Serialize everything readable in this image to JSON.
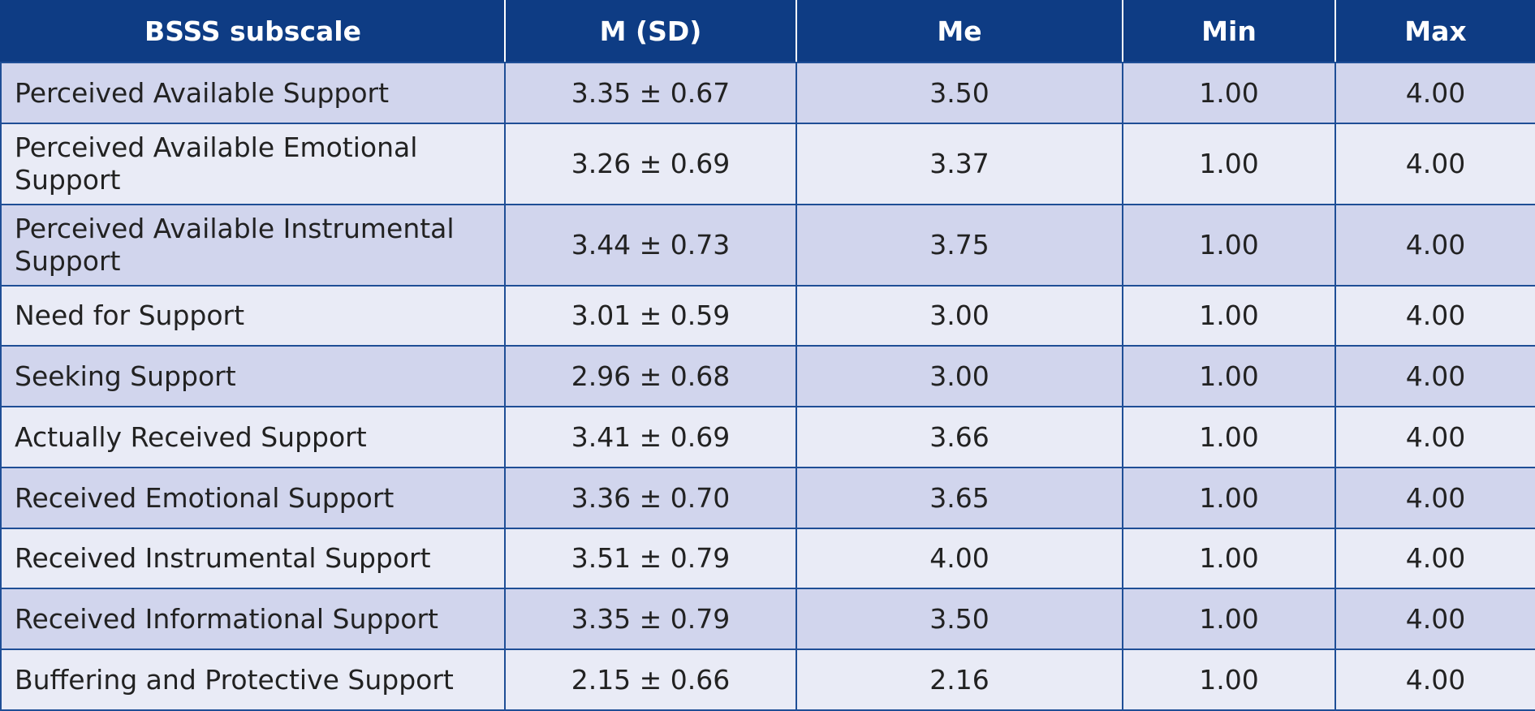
{
  "table": {
    "headers": [
      "BSSS subscale",
      "M (SD)",
      "Me",
      "Min",
      "Max"
    ],
    "rows": [
      {
        "subscale": "Perceived Available Support",
        "m_sd": "3.35 ± 0.67",
        "me": "3.50",
        "min": "1.00",
        "max": "4.00"
      },
      {
        "subscale": "Perceived Available Emotional Support",
        "m_sd": "3.26 ± 0.69",
        "me": "3.37",
        "min": "1.00",
        "max": "4.00"
      },
      {
        "subscale": "Perceived Available Instrumental Support",
        "m_sd": "3.44 ± 0.73",
        "me": "3.75",
        "min": "1.00",
        "max": "4.00"
      },
      {
        "subscale": "Need for Support",
        "m_sd": "3.01 ± 0.59",
        "me": "3.00",
        "min": "1.00",
        "max": "4.00"
      },
      {
        "subscale": "Seeking Support",
        "m_sd": "2.96 ± 0.68",
        "me": "3.00",
        "min": "1.00",
        "max": "4.00"
      },
      {
        "subscale": "Actually Received Support",
        "m_sd": "3.41 ± 0.69",
        "me": "3.66",
        "min": "1.00",
        "max": "4.00"
      },
      {
        "subscale": "Received Emotional Support",
        "m_sd": "3.36 ± 0.70",
        "me": "3.65",
        "min": "1.00",
        "max": "4.00"
      },
      {
        "subscale": "Received Instrumental Support",
        "m_sd": "3.51 ± 0.79",
        "me": "4.00",
        "min": "1.00",
        "max": "4.00"
      },
      {
        "subscale": "Received Informational Support",
        "m_sd": "3.35 ± 0.79",
        "me": "3.50",
        "min": "1.00",
        "max": "4.00"
      },
      {
        "subscale": "Buffering and Protective Support",
        "m_sd": "2.15 ± 0.66",
        "me": "2.16",
        "min": "1.00",
        "max": "4.00"
      }
    ]
  },
  "colors": {
    "header_bg": "#0e3c84",
    "header_text": "#ffffff",
    "row_odd": "#d1d5ed",
    "row_even": "#e9ebf6",
    "border": "#1f4e96"
  }
}
